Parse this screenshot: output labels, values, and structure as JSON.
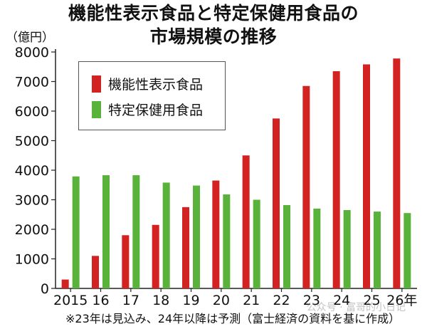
{
  "title_line1": "機能性表示食品と特定保健用食品の",
  "title_line2": "市場規模の推移",
  "unit_label": "（億円）",
  "note": "※23年は見込み、24年以降は予測（富士経済の資料を基に作成）",
  "watermark": "公众号 · 富哥的小日记",
  "colors": {
    "red": "#d32222",
    "green": "#59b33a"
  },
  "chart_data": {
    "type": "bar",
    "title": "機能性表示食品と特定保健用食品の市場規模の推移",
    "ylabel": "（億円）",
    "categories": [
      "2015",
      "16",
      "17",
      "18",
      "19",
      "20",
      "21",
      "22",
      "23",
      "24",
      "25",
      "26年"
    ],
    "series": [
      {
        "name": "機能性表示食品",
        "color": "#d32222",
        "values": [
          300,
          1100,
          1800,
          2150,
          2750,
          3650,
          4500,
          5750,
          6850,
          7350,
          7580,
          7780
        ]
      },
      {
        "name": "特定保健用食品",
        "color": "#59b33a",
        "values": [
          3790,
          3830,
          3830,
          3580,
          3480,
          3180,
          3000,
          2820,
          2700,
          2650,
          2600,
          2550
        ]
      }
    ],
    "ylim": [
      0,
      8000
    ],
    "yticks": [
      0,
      1000,
      2000,
      3000,
      4000,
      5000,
      6000,
      7000,
      8000
    ],
    "grid": false,
    "legend": "top-left"
  }
}
